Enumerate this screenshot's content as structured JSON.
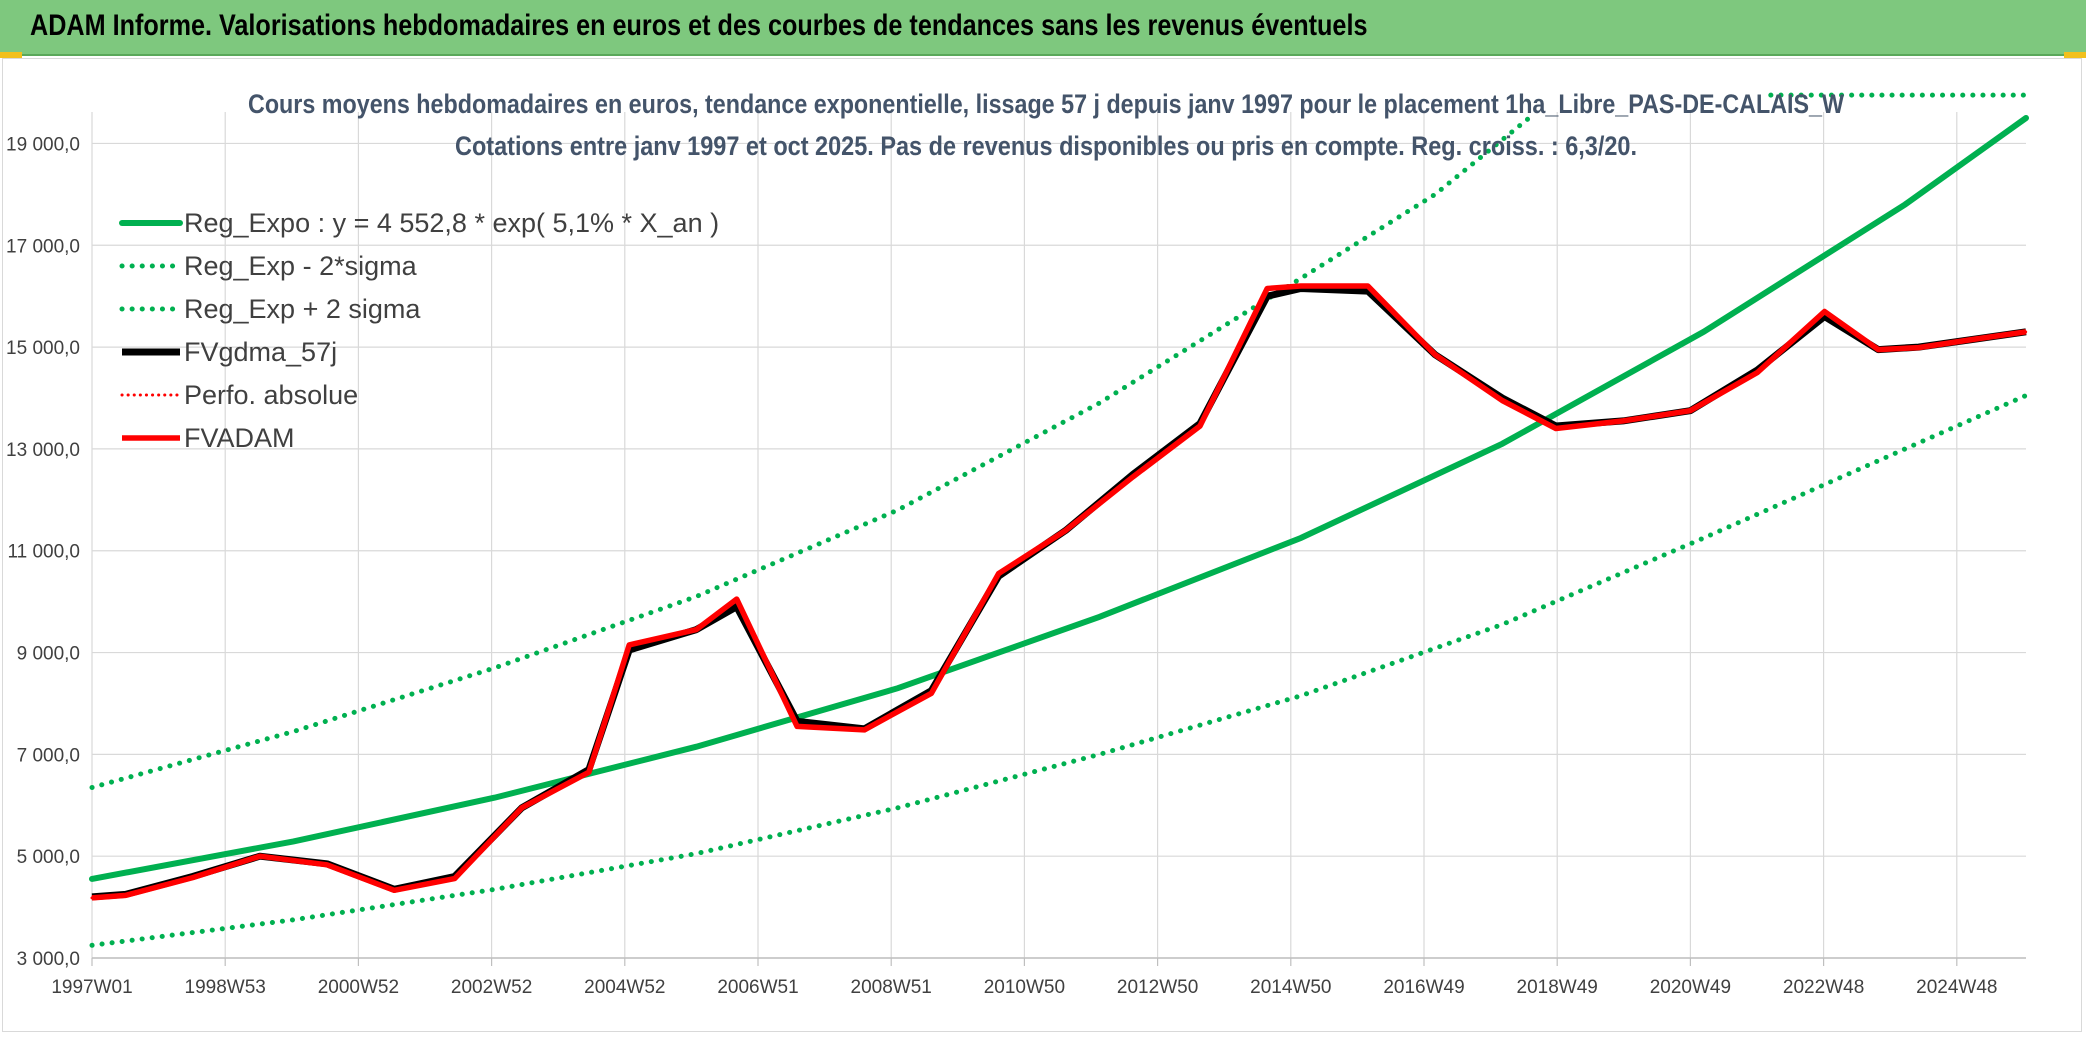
{
  "header": {
    "title": "ADAM Informe. Valorisations hebdomadaires en euros et des courbes de tendances sans les revenus éventuels"
  },
  "chart_data": {
    "type": "line",
    "title": "Cours moyens hebdomadaires en euros, tendance exponentielle, lissage 57 j depuis janv 1997 pour le placement 1ha_Libre_PAS-DE-CALAIS_W",
    "subtitle": "Cotations entre janv 1997 et oct 2025. Pas de revenus disponibles ou pris en compte. Reg. croiss. : 6,3/20.",
    "xlabel": "",
    "ylabel": "",
    "x_tick_labels": [
      "1997W01",
      "1998W53",
      "2000W52",
      "2002W52",
      "2004W52",
      "2006W51",
      "2008W51",
      "2010W50",
      "2012W50",
      "2014W50",
      "2016W49",
      "2018W49",
      "2020W49",
      "2022W48",
      "2024W48"
    ],
    "x_range": [
      1997.0,
      2025.8
    ],
    "ylim": [
      3000,
      19500
    ],
    "y_ticks": [
      3000,
      5000,
      7000,
      9000,
      11000,
      13000,
      15000,
      17000,
      19000
    ],
    "y_tick_labels": [
      "3 000,0",
      "5 000,0",
      "7 000,0",
      "9 000,0",
      "11 000,0",
      "13 000,0",
      "15 000,0",
      "17 000,0",
      "19 000,0"
    ],
    "grid": true,
    "legend_position": "top-left",
    "colors": {
      "trend": "#00b050",
      "fvgdma": "#000000",
      "perfo": "#ff0000",
      "fvadam": "#ff0000",
      "grid": "#d9d9d9"
    },
    "series": [
      {
        "name": "Reg_Expo : y = 4 552,8 * exp( 5,1% *  X_an )",
        "style": "solid",
        "color": "#00b050",
        "x": [
          1997.0,
          2000.0,
          2003.0,
          2006.0,
          2009.0,
          2012.0,
          2015.0,
          2018.0,
          2021.0,
          2024.0,
          2025.8
        ],
        "y": [
          4553,
          5290,
          6150,
          7150,
          8300,
          9700,
          11250,
          13100,
          15300,
          17800,
          19650
        ]
      },
      {
        "name": "Reg_Exp - 2*sigma",
        "style": "dotted",
        "color": "#00b050",
        "x": [
          1997.0,
          2000.0,
          2003.0,
          2006.0,
          2009.0,
          2012.0,
          2015.0,
          2018.0,
          2021.0,
          2024.0,
          2025.8
        ],
        "y": [
          3250,
          3750,
          4350,
          5050,
          5950,
          7000,
          8150,
          9550,
          11250,
          13000,
          14050
        ]
      },
      {
        "name": "Reg_Exp + 2 sigma",
        "style": "dotted",
        "color": "#00b050",
        "x": [
          1997.0,
          2000.0,
          2003.0,
          2006.0,
          2009.0,
          2012.0,
          2015.0,
          2017.0,
          2018.4
        ],
        "y": [
          6350,
          7450,
          8700,
          10100,
          11800,
          13900,
          16350,
          18000,
          19500
        ],
        "x2": [
          2022.0,
          2025.8
        ],
        "y2": [
          19950,
          19950
        ]
      },
      {
        "name": "FVgdma_57j",
        "style": "solid",
        "color": "#000000",
        "x": [
          1997.0,
          1997.5,
          1998.5,
          1999.5,
          2000.5,
          2001.5,
          2002.4,
          2003.4,
          2004.4,
          2005.0,
          2006.0,
          2006.6,
          2007.5,
          2008.5,
          2009.5,
          2010.5,
          2011.5,
          2012.5,
          2013.5,
          2014.5,
          2015.0,
          2016.0,
          2017.0,
          2018.0,
          2018.8,
          2019.8,
          2020.8,
          2021.8,
          2022.8,
          2023.6,
          2024.2,
          2025.0,
          2025.8
        ],
        "y": [
          4200,
          4250,
          4600,
          5000,
          4850,
          4350,
          4600,
          5950,
          6700,
          9050,
          9450,
          9900,
          7650,
          7500,
          8250,
          10500,
          11400,
          12500,
          13500,
          16000,
          16150,
          16100,
          14850,
          14000,
          13450,
          13550,
          13750,
          14550,
          15600,
          14950,
          15000,
          15150,
          15300
        ]
      },
      {
        "name": "Perfo. absolue",
        "style": "dotted",
        "color": "#ff0000",
        "x": [
          1997.0,
          1997.5,
          1998.5,
          1999.5,
          2000.5,
          2001.5,
          2002.4,
          2003.4,
          2004.4,
          2005.0,
          2006.0,
          2006.6,
          2007.5,
          2008.5,
          2009.5,
          2010.5,
          2011.5,
          2012.5,
          2013.5,
          2014.5,
          2015.0,
          2016.0,
          2017.0,
          2018.0,
          2018.8,
          2019.8,
          2020.8,
          2021.8,
          2022.8,
          2023.6,
          2024.2,
          2025.0,
          2025.8
        ],
        "y": [
          4180,
          4230,
          4580,
          5000,
          4830,
          4330,
          4560,
          5950,
          6650,
          9150,
          9450,
          10050,
          7550,
          7480,
          8200,
          10550,
          11400,
          12450,
          13450,
          16150,
          16200,
          16200,
          14850,
          13950,
          13400,
          13550,
          13750,
          14500,
          15700,
          14950,
          14990,
          15150,
          15300
        ]
      },
      {
        "name": "FVADAM",
        "style": "solid",
        "color": "#ff0000",
        "x": [
          1997.0,
          1997.5,
          1998.5,
          1999.5,
          2000.5,
          2001.5,
          2002.4,
          2003.4,
          2004.4,
          2005.0,
          2006.0,
          2006.6,
          2007.5,
          2008.5,
          2009.5,
          2010.5,
          2011.5,
          2012.5,
          2013.5,
          2014.5,
          2015.0,
          2016.0,
          2017.0,
          2018.0,
          2018.8,
          2019.8,
          2020.8,
          2021.8,
          2022.8,
          2023.6,
          2024.2,
          2025.0,
          2025.8
        ],
        "y": [
          4180,
          4230,
          4580,
          5000,
          4830,
          4330,
          4560,
          5950,
          6650,
          9150,
          9450,
          10050,
          7550,
          7480,
          8200,
          10550,
          11400,
          12450,
          13450,
          16150,
          16200,
          16200,
          14850,
          13950,
          13400,
          13550,
          13750,
          14500,
          15700,
          14950,
          14990,
          15150,
          15300
        ]
      }
    ]
  }
}
